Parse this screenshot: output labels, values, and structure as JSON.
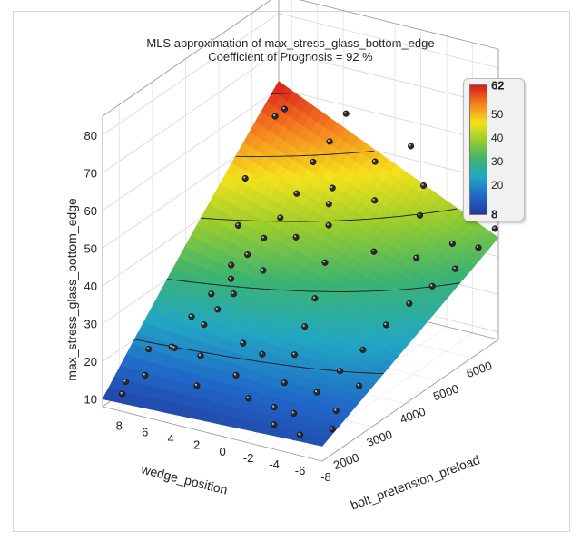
{
  "chart_data": {
    "type": "surface3d",
    "title": "MLS approximation of max_stress_glass_bottom_edge",
    "subtitle": "Coefficient of Prognosis =     92 %",
    "xlabel": "wedge_position",
    "ylabel": "bolt_pretension_preload",
    "zlabel": "max_stress_glass_bottom_edge",
    "xlim": [
      -8,
      9
    ],
    "ylim": [
      1500,
      6800
    ],
    "zlim": [
      8,
      85
    ],
    "x_ticks": [
      "8",
      "6",
      "4",
      "2",
      "0",
      "-2",
      "-4",
      "-6",
      "-8"
    ],
    "y_ticks": [
      "2000",
      "3000",
      "4000",
      "5000",
      "6000"
    ],
    "z_ticks": [
      "10",
      "20",
      "30",
      "40",
      "50",
      "60",
      "70",
      "80"
    ],
    "colorbar": {
      "min": 8,
      "max": 62,
      "ticks": [
        "62",
        "50",
        "40",
        "30",
        "20",
        "8"
      ],
      "colors": [
        "#d7191c",
        "#f57d20",
        "#f5e21b",
        "#97cc2e",
        "#3cb371",
        "#22a7c4",
        "#2166c8",
        "#223a9a"
      ]
    },
    "contour_levels": [
      20,
      30,
      40,
      50,
      60
    ],
    "surface_corners": {
      "x9_y1500": 10,
      "x-8_y1500": 12,
      "x9_y6800": 62,
      "x-8_y6800": 35
    },
    "points": [
      [
        8.5,
        2000,
        12
      ],
      [
        8.0,
        2500,
        18
      ],
      [
        7.5,
        3000,
        16
      ],
      [
        7.0,
        3400,
        22
      ],
      [
        6.5,
        3800,
        26
      ],
      [
        6.0,
        4200,
        28
      ],
      [
        5.5,
        4500,
        33
      ],
      [
        5.0,
        4800,
        36
      ],
      [
        4.5,
        5100,
        40
      ],
      [
        4.0,
        5400,
        45
      ],
      [
        3.5,
        5700,
        52
      ],
      [
        3.0,
        6000,
        56
      ],
      [
        2.5,
        6300,
        62
      ],
      [
        2.0,
        6500,
        66
      ],
      [
        1.5,
        6600,
        72
      ],
      [
        1.0,
        6700,
        78
      ],
      [
        0.5,
        6750,
        82
      ],
      [
        8.5,
        6500,
        55
      ],
      [
        7.0,
        6200,
        60
      ],
      [
        6.0,
        6600,
        70
      ],
      [
        5.0,
        6700,
        75
      ],
      [
        4.0,
        6400,
        68
      ],
      [
        3.0,
        6800,
        85
      ],
      [
        2.5,
        6500,
        80
      ],
      [
        1.5,
        5500,
        48
      ],
      [
        0.5,
        5000,
        42
      ],
      [
        -0.5,
        4500,
        36
      ],
      [
        -1.0,
        4000,
        30
      ],
      [
        -1.5,
        3500,
        26
      ],
      [
        -2.0,
        3000,
        22
      ],
      [
        -2.5,
        2500,
        18
      ],
      [
        -3.0,
        2000,
        15
      ],
      [
        -3.5,
        1800,
        12
      ],
      [
        -4.0,
        2200,
        13
      ],
      [
        -4.5,
        2700,
        16
      ],
      [
        -5.0,
        3200,
        19
      ],
      [
        -5.5,
        3700,
        22
      ],
      [
        -6.0,
        4200,
        26
      ],
      [
        -6.5,
        4700,
        29
      ],
      [
        -7.0,
        5200,
        31
      ],
      [
        -7.5,
        5700,
        33
      ],
      [
        -8.0,
        6200,
        36
      ],
      [
        -8.0,
        6700,
        38
      ],
      [
        -7.5,
        6500,
        42
      ],
      [
        -6.5,
        6000,
        37
      ],
      [
        -5.0,
        5500,
        35
      ],
      [
        -3.0,
        5000,
        38
      ],
      [
        -1.0,
        5800,
        45
      ],
      [
        0.0,
        6200,
        52
      ],
      [
        1.0,
        5200,
        46
      ],
      [
        2.0,
        4600,
        40
      ],
      [
        3.0,
        4000,
        34
      ],
      [
        4.0,
        3500,
        30
      ],
      [
        5.0,
        3000,
        24
      ],
      [
        6.0,
        2500,
        20
      ],
      [
        7.0,
        2000,
        15
      ],
      [
        8.0,
        1700,
        11
      ],
      [
        -2.0,
        6500,
        56
      ],
      [
        -3.5,
        6300,
        48
      ],
      [
        -4.5,
        5800,
        44
      ],
      [
        -6.0,
        6800,
        40
      ],
      [
        0.5,
        3000,
        20
      ],
      [
        -0.5,
        2200,
        14
      ],
      [
        1.5,
        2600,
        16
      ],
      [
        2.5,
        3200,
        20
      ],
      [
        3.5,
        2200,
        14
      ],
      [
        4.5,
        2700,
        18
      ],
      [
        5.5,
        3600,
        24
      ],
      [
        6.5,
        4400,
        30
      ],
      [
        7.5,
        5000,
        36
      ],
      [
        8.5,
        5600,
        44
      ],
      [
        -7.0,
        3000,
        18
      ],
      [
        -7.5,
        2000,
        13
      ],
      [
        -6.5,
        2500,
        14
      ],
      [
        -5.5,
        1800,
        11
      ]
    ]
  }
}
